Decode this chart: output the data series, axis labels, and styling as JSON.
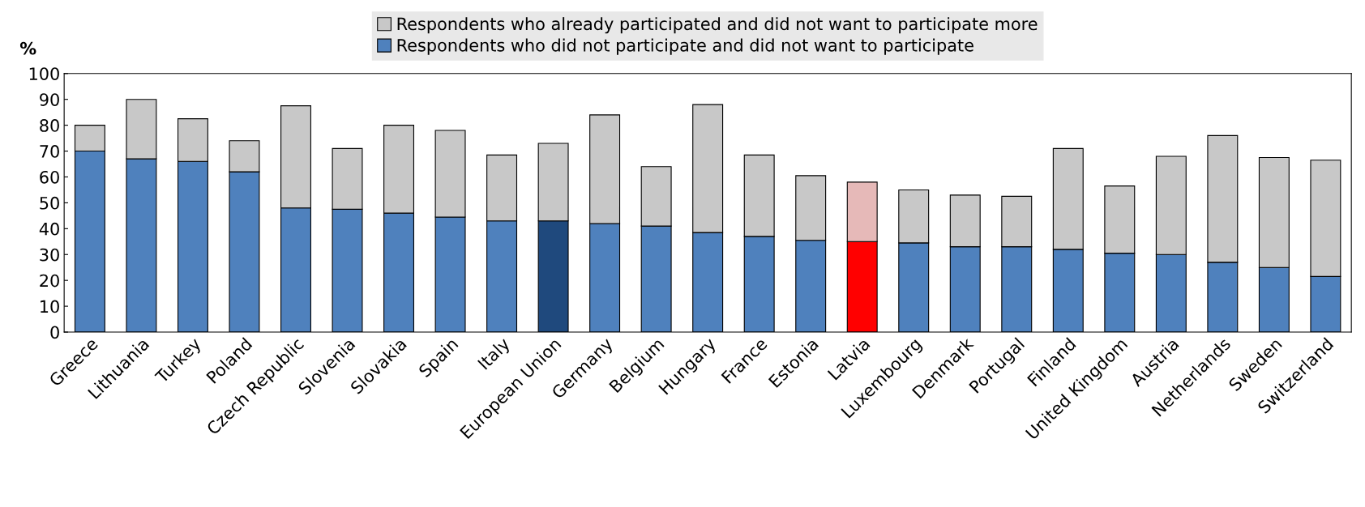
{
  "chart_data": {
    "type": "bar",
    "stacked": true,
    "ylabel": "%",
    "categories": [
      "Greece",
      "Lithuania",
      "Turkey",
      "Poland",
      "Czech Republic",
      "Slovenia",
      "Slovakia",
      "Spain",
      "Italy",
      "European Union",
      "Germany",
      "Belgium",
      "Hungary",
      "France",
      "Estonia",
      "Latvia",
      "Luxembourg",
      "Denmark",
      "Portugal",
      "Finland",
      "United Kingdom",
      "Austria",
      "Netherlands",
      "Sweden",
      "Switzerland"
    ],
    "series": [
      {
        "name": "Respondents who did not participate and did not want to participate",
        "color": "#4f81bd",
        "colors": [
          "#4f81bd",
          "#4f81bd",
          "#4f81bd",
          "#4f81bd",
          "#4f81bd",
          "#4f81bd",
          "#4f81bd",
          "#4f81bd",
          "#4f81bd",
          "#1f497d",
          "#4f81bd",
          "#4f81bd",
          "#4f81bd",
          "#4f81bd",
          "#4f81bd",
          "#ff0000",
          "#4f81bd",
          "#4f81bd",
          "#4f81bd",
          "#4f81bd",
          "#4f81bd",
          "#4f81bd",
          "#4f81bd",
          "#4f81bd",
          "#4f81bd"
        ],
        "values": [
          70,
          67,
          66,
          62,
          48,
          47.5,
          46,
          44.5,
          43,
          43,
          42,
          41,
          38.5,
          37,
          35.5,
          35,
          34.5,
          33,
          33,
          32,
          30.5,
          30,
          27,
          25,
          21.5
        ]
      },
      {
        "name": "Respondents who already participated and did not want to participate more",
        "color": "#c8c8c8",
        "colors": [
          "#c8c8c8",
          "#c8c8c8",
          "#c8c8c8",
          "#c8c8c8",
          "#c8c8c8",
          "#c8c8c8",
          "#c8c8c8",
          "#c8c8c8",
          "#c8c8c8",
          "#c8c8c8",
          "#c8c8c8",
          "#c8c8c8",
          "#c8c8c8",
          "#c8c8c8",
          "#c8c8c8",
          "#e6b9b8",
          "#c8c8c8",
          "#c8c8c8",
          "#c8c8c8",
          "#c8c8c8",
          "#c8c8c8",
          "#c8c8c8",
          "#c8c8c8",
          "#c8c8c8",
          "#c8c8c8"
        ],
        "values": [
          10,
          23,
          16.5,
          12,
          39.5,
          23.5,
          34,
          33.5,
          25.5,
          30,
          42,
          23,
          49.5,
          31.5,
          25,
          23,
          20.5,
          20,
          19.5,
          39,
          26,
          38,
          49,
          42.5,
          45
        ]
      }
    ],
    "ylim": [
      0,
      100
    ],
    "yticks": [
      0,
      10,
      20,
      30,
      40,
      50,
      60,
      70,
      80,
      90,
      100
    ],
    "grid": false,
    "legend": "top"
  }
}
